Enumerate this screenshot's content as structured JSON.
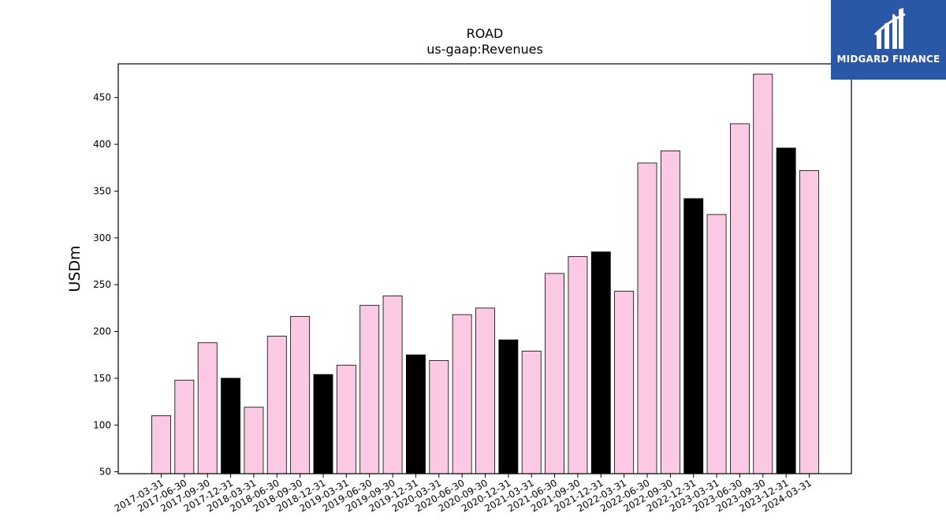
{
  "logo": {
    "text": "MIDGARD FINANCE"
  },
  "chart_data": {
    "type": "bar",
    "title": "ROAD",
    "subtitle": "us-gaap:Revenues",
    "xlabel": "",
    "ylabel": "USDm",
    "ylim": [
      48,
      486
    ],
    "yticks": [
      50,
      100,
      150,
      200,
      250,
      300,
      350,
      400,
      450
    ],
    "grid": false,
    "colors": {
      "quarter": "#fbc9e3",
      "year_end": "#000000",
      "edge": "#000000"
    },
    "categories": [
      "2017-03-31",
      "2017-06-30",
      "2017-09-30",
      "2017-12-31",
      "2018-03-31",
      "2018-06-30",
      "2018-09-30",
      "2018-12-31",
      "2019-03-31",
      "2019-06-30",
      "2019-09-30",
      "2019-12-31",
      "2020-03-31",
      "2020-06-30",
      "2020-09-30",
      "2020-12-31",
      "2021-03-31",
      "2021-06-30",
      "2021-09-30",
      "2021-12-31",
      "2022-03-31",
      "2022-06-30",
      "2022-09-30",
      "2022-12-31",
      "2023-03-31",
      "2023-06-30",
      "2023-09-30",
      "2023-12-31",
      "2024-03-31"
    ],
    "values": [
      110,
      148,
      188,
      150,
      119,
      195,
      216,
      154,
      164,
      228,
      238,
      175,
      169,
      218,
      225,
      191,
      179,
      262,
      280,
      285,
      243,
      380,
      393,
      342,
      325,
      422,
      475,
      396,
      372
    ]
  }
}
